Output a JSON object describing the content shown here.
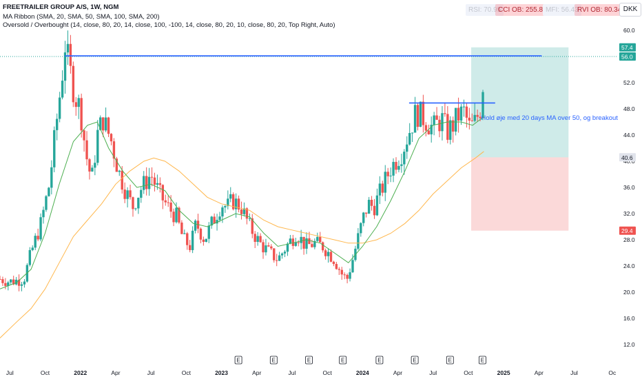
{
  "header": {
    "symbol_line": "FREETRAILER GROUP A/S, 1W, NGM",
    "indicator1": "MA Ribbon (SMA, 20, SMA, 50, SMA, 100, SMA, 200)",
    "indicator2": "Oversold / Overbought (14, close, 80, 20, 14, close, 100, -100, 14, close, 80, 20, 10, close, 80, 20, Top Right, Auto)",
    "currency": "DKK"
  },
  "badges": [
    {
      "text": "RSI: 70.95",
      "faded": true
    },
    {
      "text": "CCI OB: 255.83",
      "faded": false
    },
    {
      "text": "MFI: 56.43",
      "faded": true
    },
    {
      "text": "RVI OB: 80.34",
      "faded": false
    }
  ],
  "colors": {
    "up": "#26a69a",
    "down": "#ef5350",
    "ma20": "#4caf50",
    "ma50": "#ffb74d",
    "trendline": "#2962ff",
    "annotation": "#2962ff",
    "target_zone": "#26a69a",
    "stop_zone": "#ef5350"
  },
  "chart_data": {
    "type": "candlestick",
    "y_axis": {
      "min": 10,
      "max": 62,
      "ticks": [
        "60.0",
        "56.0",
        "52.0",
        "48.0",
        "44.0",
        "40.0",
        "36.0",
        "32.0",
        "28.0",
        "24.0",
        "20.0",
        "16.0",
        "12.0"
      ]
    },
    "x_axis": {
      "min": 2021.43,
      "max": 2025.81,
      "ticks": [
        {
          "label": "Jul",
          "t": 2021.5
        },
        {
          "label": "Oct",
          "t": 2021.75
        },
        {
          "label": "2022",
          "t": 2022.0
        },
        {
          "label": "Apr",
          "t": 2022.25
        },
        {
          "label": "Jul",
          "t": 2022.5
        },
        {
          "label": "Oct",
          "t": 2022.75
        },
        {
          "label": "2023",
          "t": 2023.0
        },
        {
          "label": "Apr",
          "t": 2023.25
        },
        {
          "label": "Jul",
          "t": 2023.5
        },
        {
          "label": "Oct",
          "t": 2023.75
        },
        {
          "label": "2024",
          "t": 2024.0
        },
        {
          "label": "Apr",
          "t": 2024.25
        },
        {
          "label": "Jul",
          "t": 2024.5
        },
        {
          "label": "Oct",
          "t": 2024.75
        },
        {
          "label": "2025",
          "t": 2025.0
        },
        {
          "label": "Apr",
          "t": 2025.25
        },
        {
          "label": "Jul",
          "t": 2025.5
        },
        {
          "label": "Oc",
          "t": 2025.77
        }
      ]
    },
    "price_labels": [
      {
        "text": "57.4",
        "value": 57.4,
        "kind": "target"
      },
      {
        "text": "56.0",
        "value": 56.0,
        "kind": "last"
      },
      {
        "text": "40.6",
        "value": 40.6,
        "kind": "entry"
      },
      {
        "text": "29.4",
        "value": 29.4,
        "kind": "stop"
      }
    ],
    "earnings_markers": {
      "label": "E",
      "t": [
        2023.12,
        2023.37,
        2023.62,
        2023.86,
        2024.12,
        2024.37,
        2024.62,
        2024.85
      ]
    },
    "hline": {
      "value": 56.1,
      "t0": 2021.89,
      "t1": 2025.27
    },
    "trendline": {
      "value": 48.9,
      "t0": 2024.33,
      "t1": 2024.94
    },
    "annotation": {
      "text": "Hold øje med 20 days MA over 50, og breakout",
      "value": 46.3,
      "t": 2024.84
    },
    "position": {
      "t0": 2024.77,
      "t1": 2025.46,
      "target": 57.4,
      "entry": 40.6,
      "stop": 29.4
    },
    "price_path": [
      [
        2021.43,
        22.0
      ],
      [
        2021.5,
        21.6
      ],
      [
        2021.6,
        22.0
      ],
      [
        2021.65,
        26.0
      ],
      [
        2021.72,
        30.5
      ],
      [
        2021.78,
        36.5
      ],
      [
        2021.82,
        44.0
      ],
      [
        2021.87,
        53.0
      ],
      [
        2021.89,
        58.0
      ],
      [
        2021.92,
        54.5
      ],
      [
        2021.96,
        50.0
      ],
      [
        2022.0,
        48.0
      ],
      [
        2022.04,
        41.0
      ],
      [
        2022.08,
        37.0
      ],
      [
        2022.12,
        44.0
      ],
      [
        2022.16,
        46.5
      ],
      [
        2022.22,
        43.0
      ],
      [
        2022.27,
        38.5
      ],
      [
        2022.32,
        35.5
      ],
      [
        2022.37,
        33.0
      ],
      [
        2022.42,
        35.5
      ],
      [
        2022.5,
        38.0
      ],
      [
        2022.56,
        35.0
      ],
      [
        2022.62,
        33.0
      ],
      [
        2022.68,
        31.5
      ],
      [
        2022.73,
        28.0
      ],
      [
        2022.78,
        27.0
      ],
      [
        2022.82,
        30.5
      ],
      [
        2022.88,
        28.0
      ],
      [
        2022.92,
        30.0
      ],
      [
        2023.0,
        33.5
      ],
      [
        2023.04,
        33.0
      ],
      [
        2023.08,
        34.0
      ],
      [
        2023.14,
        33.0
      ],
      [
        2023.2,
        30.0
      ],
      [
        2023.27,
        27.5
      ],
      [
        2023.34,
        26.0
      ],
      [
        2023.4,
        25.0
      ],
      [
        2023.46,
        27.0
      ],
      [
        2023.53,
        29.0
      ],
      [
        2023.6,
        27.0
      ],
      [
        2023.66,
        27.5
      ],
      [
        2023.72,
        27.0
      ],
      [
        2023.8,
        25.0
      ],
      [
        2023.86,
        22.5
      ],
      [
        2023.89,
        22.0
      ],
      [
        2023.93,
        25.0
      ],
      [
        2024.0,
        31.0
      ],
      [
        2024.04,
        33.5
      ],
      [
        2024.08,
        33.0
      ],
      [
        2024.14,
        36.0
      ],
      [
        2024.2,
        39.0
      ],
      [
        2024.28,
        41.5
      ],
      [
        2024.33,
        44.5
      ],
      [
        2024.38,
        47.5
      ],
      [
        2024.44,
        46.5
      ],
      [
        2024.5,
        45.0
      ],
      [
        2024.56,
        46.5
      ],
      [
        2024.6,
        44.5
      ],
      [
        2024.64,
        45.5
      ],
      [
        2024.68,
        47.0
      ],
      [
        2024.72,
        47.5
      ],
      [
        2024.76,
        45.0
      ],
      [
        2024.8,
        46.0
      ],
      [
        2024.84,
        48.5
      ],
      [
        2024.87,
        56.0
      ]
    ],
    "ma20_path": [
      [
        2021.43,
        20.5
      ],
      [
        2021.55,
        21.5
      ],
      [
        2021.65,
        23.5
      ],
      [
        2021.75,
        29.0
      ],
      [
        2021.85,
        36.5
      ],
      [
        2021.95,
        43.0
      ],
      [
        2022.05,
        45.5
      ],
      [
        2022.12,
        46.0
      ],
      [
        2022.2,
        42.0
      ],
      [
        2022.3,
        38.5
      ],
      [
        2022.4,
        36.0
      ],
      [
        2022.5,
        36.5
      ],
      [
        2022.6,
        35.5
      ],
      [
        2022.7,
        32.5
      ],
      [
        2022.8,
        30.5
      ],
      [
        2022.9,
        30.0
      ],
      [
        2023.0,
        31.0
      ],
      [
        2023.1,
        32.0
      ],
      [
        2023.2,
        31.5
      ],
      [
        2023.3,
        29.0
      ],
      [
        2023.4,
        27.0
      ],
      [
        2023.5,
        27.5
      ],
      [
        2023.6,
        28.0
      ],
      [
        2023.7,
        27.5
      ],
      [
        2023.8,
        26.0
      ],
      [
        2023.9,
        24.5
      ],
      [
        2024.0,
        27.0
      ],
      [
        2024.1,
        30.0
      ],
      [
        2024.2,
        34.0
      ],
      [
        2024.3,
        38.5
      ],
      [
        2024.4,
        43.5
      ],
      [
        2024.5,
        45.5
      ],
      [
        2024.6,
        46.0
      ],
      [
        2024.7,
        46.0
      ],
      [
        2024.78,
        45.5
      ],
      [
        2024.86,
        46.8
      ]
    ],
    "ma50_path": [
      [
        2021.43,
        13.0
      ],
      [
        2021.55,
        15.5
      ],
      [
        2021.65,
        17.5
      ],
      [
        2021.75,
        20.5
      ],
      [
        2021.85,
        24.5
      ],
      [
        2021.95,
        28.5
      ],
      [
        2022.05,
        31.0
      ],
      [
        2022.15,
        33.5
      ],
      [
        2022.25,
        36.5
      ],
      [
        2022.35,
        38.5
      ],
      [
        2022.45,
        40.0
      ],
      [
        2022.52,
        40.5
      ],
      [
        2022.6,
        40.0
      ],
      [
        2022.7,
        38.5
      ],
      [
        2022.8,
        36.5
      ],
      [
        2022.9,
        34.5
      ],
      [
        2023.0,
        33.5
      ],
      [
        2023.1,
        33.0
      ],
      [
        2023.2,
        32.5
      ],
      [
        2023.3,
        31.0
      ],
      [
        2023.4,
        30.0
      ],
      [
        2023.5,
        29.5
      ],
      [
        2023.6,
        29.0
      ],
      [
        2023.7,
        28.5
      ],
      [
        2023.8,
        28.0
      ],
      [
        2023.9,
        27.5
      ],
      [
        2024.0,
        27.5
      ],
      [
        2024.1,
        28.0
      ],
      [
        2024.2,
        29.0
      ],
      [
        2024.3,
        30.5
      ],
      [
        2024.4,
        32.5
      ],
      [
        2024.5,
        35.0
      ],
      [
        2024.6,
        37.0
      ],
      [
        2024.7,
        39.0
      ],
      [
        2024.8,
        40.5
      ],
      [
        2024.86,
        41.5
      ]
    ]
  }
}
